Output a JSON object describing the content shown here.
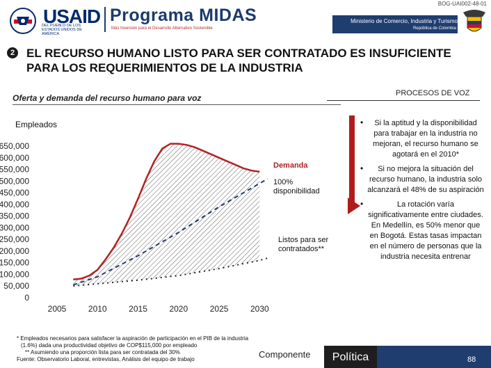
{
  "header": {
    "doc_code": "BOG-UAI002-48-01",
    "usaid_word": "USAID",
    "usaid_sub": "DEL PUEBLO DE LOS ESTADOS UNIDOS DE AMÉRICA",
    "program_title": "Programa MIDAS",
    "program_tagline": "Más Inversión para el Desarrollo Alternativo Sostenible",
    "ministry_name": "Ministerio de Comercio, Industria y Turismo",
    "ministry_country": "República de Colombia"
  },
  "slide": {
    "number": "2",
    "title": "EL RECURSO HUMANO LISTO PARA SER CONTRATADO ES INSUFICIENTE PARA LOS REQUERIMIENTOS DE LA INDUSTRIA",
    "process_tag": "PROCESOS DE VOZ"
  },
  "chart_heading": "Oferta y demanda del recurso humano para voz",
  "chart_data": {
    "type": "line",
    "title": "Oferta y demanda del recurso humano para voz",
    "ylabel": "Empleados",
    "xlabel": "",
    "xlim": [
      2005,
      2031
    ],
    "ylim": [
      0,
      650000
    ],
    "x_ticks": [
      "2005",
      "2010",
      "2015",
      "2020",
      "2025",
      "2030"
    ],
    "y_ticks": [
      "650,000",
      "600,000",
      "550,000",
      "500,000",
      "450,000",
      "400,000",
      "350,000",
      "300,000",
      "250,000",
      "200,000",
      "150,000",
      "100,000",
      "50,000",
      "0"
    ],
    "series": [
      {
        "name": "Demanda",
        "style": "solid",
        "color": "#b22222",
        "x": [
          2007,
          2008,
          2009,
          2010,
          2011,
          2012,
          2013,
          2014,
          2015,
          2016,
          2017,
          2018,
          2019,
          2020,
          2021,
          2022,
          2023,
          2024,
          2025,
          2026,
          2027,
          2028,
          2029,
          2030
        ],
        "values": [
          78000,
          82000,
          95000,
          120000,
          165000,
          215000,
          275000,
          345000,
          425000,
          510000,
          585000,
          640000,
          660000,
          660000,
          655000,
          645000,
          630000,
          615000,
          600000,
          585000,
          570000,
          555000,
          545000,
          540000
        ]
      },
      {
        "name": "100% disponibilidad",
        "style": "dashed",
        "color": "#1f3d6f",
        "x": [
          2007,
          2010,
          2015,
          2020,
          2025,
          2030,
          2031
        ],
        "values": [
          55000,
          90000,
          180000,
          280000,
          390000,
          490000,
          510000
        ]
      },
      {
        "name": "Listos para ser contratados**",
        "style": "dotted",
        "color": "#222222",
        "x": [
          2007,
          2010,
          2015,
          2020,
          2025,
          2030,
          2031
        ],
        "values": [
          50000,
          60000,
          75000,
          95000,
          125000,
          160000,
          170000
        ]
      }
    ],
    "annotations": [
      {
        "text": "Demanda",
        "series": "Demanda"
      },
      {
        "text": "100%",
        "series": "100% disponibilidad"
      },
      {
        "text": "disponibilidad",
        "series": "100% disponibilidad"
      },
      {
        "text": "Listos para ser",
        "series": "Listos para ser contratados**"
      },
      {
        "text": "contratados**",
        "series": "Listos para ser contratados**"
      }
    ],
    "gap_fill": "hatched area between Demanda and Listos para ser contratados**"
  },
  "bullets": [
    "Si la aptitud y la disponibilidad para trabajar en la industria no mejoran, el recurso humano se agotará en el 2010*",
    "Si no mejora la situación del recurso humano, la industria solo alcanzará el 48% de su aspiración",
    "La rotación varía significativamente entre ciudades. En Medellín, es 50% menor que en Bogotá. Estas tasas impactan en el número de personas que la industria necesita entrenar"
  ],
  "footnotes": [
    "* Empleados necesarios para satisfacer la aspiración de participación en el PIB de la industria",
    "(1.6%) dada una productividad objetivo de COP$115,000 por empleado",
    "** Asumiendo una proporción lista para ser contratada del 30%",
    "Fuente: Observatorio Laboral, entrevistas, Análisis del equipo de trabajo"
  ],
  "footer": {
    "componente": "Componente",
    "politica": "Política",
    "page": "88"
  },
  "colors": {
    "navy": "#1f3d6f",
    "demand_red": "#b22222",
    "dark": "#1e1e1e"
  }
}
